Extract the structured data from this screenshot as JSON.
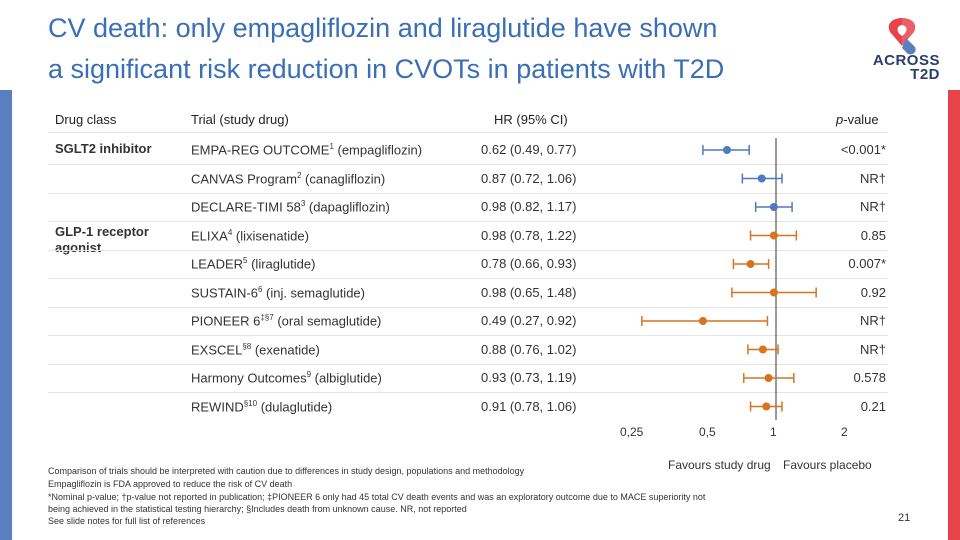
{
  "title_line1": "CV death: only empagliflozin and liraglutide have shown",
  "title_line2": "a significant risk reduction in CVOTs in patients with T2D",
  "logo": {
    "line1": "ACROSS",
    "line2": "T2D"
  },
  "headers": {
    "drug_class": "Drug class",
    "trial": "Trial (study drug)",
    "hr": "HR (95% CI)",
    "p_italic": "p",
    "p_rest": "-value"
  },
  "classes": {
    "sglt2": "SGLT2 inhibitor",
    "glp1": "GLP-1 receptor agonist"
  },
  "colors": {
    "blue": "#4f79c1",
    "orange": "#d9731f",
    "title": "#3a6fb5"
  },
  "rows": [
    {
      "trial": "EMPA-REG OUTCOME",
      "sup": "1",
      "drug": " (empagliflozin)",
      "hr_text": "0.62 (0.49, 0.77)",
      "p": "<0.001*"
    },
    {
      "trial": "CANVAS Program",
      "sup": "2",
      "drug": " (canagliflozin)",
      "hr_text": "0.87 (0.72, 1.06)",
      "p": "NR†"
    },
    {
      "trial": "DECLARE-TIMI 58",
      "sup": "3",
      "drug": " (dapagliflozin)",
      "hr_text": "0.98 (0.82, 1.17)",
      "p": "NR†"
    },
    {
      "trial": "ELIXA",
      "sup": "4",
      "drug": " (lixisenatide)",
      "hr_text": "0.98 (0.78, 1.22)",
      "p": "0.85"
    },
    {
      "trial": "LEADER",
      "sup": "5",
      "drug": " (liraglutide)",
      "hr_text": "0.78 (0.66, 0.93)",
      "p": "0.007*"
    },
    {
      "trial": "SUSTAIN-6",
      "sup": "6",
      "drug": " (inj. semaglutide)",
      "hr_text": "0.98 (0.65, 1.48)",
      "p": "0.92"
    },
    {
      "trial": "PIONEER 6",
      "sup": "‡§7",
      "drug": " (oral semaglutide)",
      "hr_text": "0.49 (0.27, 0.92)",
      "p": "NR†"
    },
    {
      "trial": "EXSCEL",
      "sup": "§8",
      "drug": " (exenatide)",
      "hr_text": "0.88 (0.76, 1.02)",
      "p": "NR†"
    },
    {
      "trial": "Harmony Outcomes",
      "sup": "9",
      "drug": " (albiglutide)",
      "hr_text": "0.93 (0.73, 1.19)",
      "p": "0.578"
    },
    {
      "trial": "REWIND",
      "sup": "§10",
      "drug": " (dulaglutide)",
      "hr_text": "0.91 (0.78, 1.06)",
      "p": "0.21"
    }
  ],
  "chart_data": {
    "type": "scatter",
    "x_scale": "log",
    "x_ticks": [
      0.25,
      0.5,
      1,
      2
    ],
    "x_tick_labels": [
      "0,25",
      "0,5",
      "1",
      "2"
    ],
    "reference_line": 1,
    "series": [
      {
        "name": "SGLT2 inhibitor",
        "color": "#4f79c1",
        "points": [
          {
            "hr": 0.62,
            "lo": 0.49,
            "hi": 0.77
          },
          {
            "hr": 0.87,
            "lo": 0.72,
            "hi": 1.06
          },
          {
            "hr": 0.98,
            "lo": 0.82,
            "hi": 1.17
          }
        ]
      },
      {
        "name": "GLP-1 receptor agonist",
        "color": "#d9731f",
        "points": [
          {
            "hr": 0.98,
            "lo": 0.78,
            "hi": 1.22
          },
          {
            "hr": 0.78,
            "lo": 0.66,
            "hi": 0.93
          },
          {
            "hr": 0.98,
            "lo": 0.65,
            "hi": 1.48
          },
          {
            "hr": 0.49,
            "lo": 0.27,
            "hi": 0.92
          },
          {
            "hr": 0.88,
            "lo": 0.76,
            "hi": 1.02
          },
          {
            "hr": 0.93,
            "lo": 0.73,
            "hi": 1.19
          },
          {
            "hr": 0.91,
            "lo": 0.78,
            "hi": 1.06
          }
        ]
      }
    ],
    "favors_left": "Favours study drug",
    "favors_right": "Favours placebo"
  },
  "footnotes": [
    "Comparison of trials should be interpreted with caution due to differences in study design, populations and methodology",
    "Empagliflozin is FDA approved to reduce the risk of CV death",
    "*Nominal p-value; †p-value not reported in publication; ‡PIONEER 6 only had 45 total CV death events and was an exploratory outcome due to MACE superiority not",
    "being achieved in the statistical testing hierarchy; §Includes death from unknown cause. NR, not reported",
    "See slide notes for full list of references"
  ],
  "page_number": "21"
}
